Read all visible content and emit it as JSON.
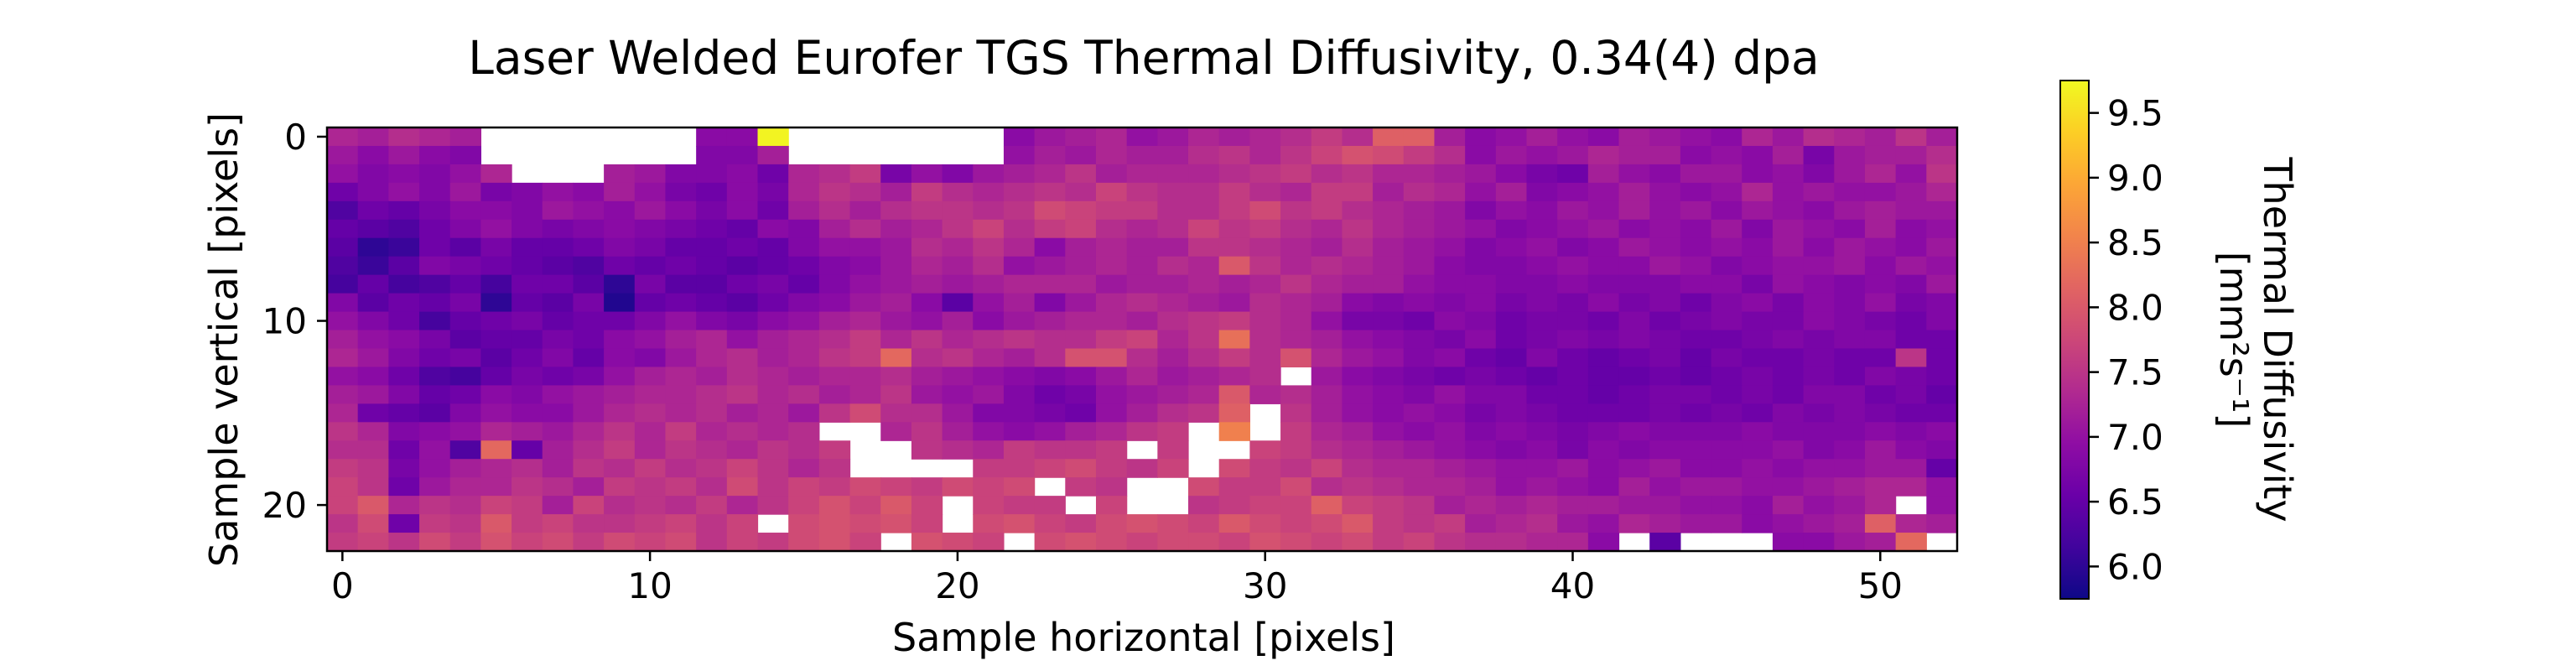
{
  "chart_data": {
    "type": "heatmap",
    "title": "Laser Welded Eurofer TGS Thermal Diffusivity, 0.34(4) dpa",
    "xlabel": "Sample horizontal [pixels]",
    "ylabel": "Sample vertical [pixels]",
    "colorbar_label_line1": "Thermal Diffusivity",
    "colorbar_label_line2": "[mm²s⁻¹]",
    "colormap": "plasma",
    "columns": 53,
    "rows": 23,
    "xlim": [
      -0.5,
      52.5
    ],
    "ylim": [
      22.5,
      -0.5
    ],
    "xticks": [
      0,
      10,
      20,
      30,
      40,
      50
    ],
    "xtick_labels": [
      "0",
      "10",
      "20",
      "30",
      "40",
      "50"
    ],
    "yticks": [
      0,
      10,
      20
    ],
    "ytick_labels": [
      "0",
      "10",
      "20"
    ],
    "color_range": [
      5.75,
      9.75
    ],
    "colorbar_ticks": [
      6.0,
      6.5,
      7.0,
      7.5,
      8.0,
      8.5,
      9.0,
      9.5
    ],
    "colorbar_tick_labels": [
      "6.0",
      "6.5",
      "7.0",
      "7.5",
      "8.0",
      "8.5",
      "9.0",
      "9.5"
    ],
    "values": [
      [
        7.3,
        7.2,
        7.4,
        7.3,
        7.2,
        null,
        null,
        null,
        null,
        null,
        null,
        null,
        6.9,
        6.9,
        9.7,
        null,
        null,
        null,
        null,
        null,
        null,
        null,
        6.9,
        7.1,
        7.2,
        7.3,
        7.0,
        7.1,
        7.3,
        7.2,
        7.3,
        7.4,
        7.6,
        7.4,
        8.1,
        8.1,
        7.2,
        6.9,
        7.0,
        7.2,
        7.0,
        6.9,
        7.2,
        7.1,
        7.0,
        6.9,
        7.3,
        7.1,
        7.4,
        7.3,
        7.2,
        7.5,
        7.2
      ],
      [
        7.1,
        6.9,
        7.1,
        6.9,
        6.8,
        null,
        null,
        null,
        null,
        null,
        null,
        null,
        6.8,
        6.8,
        7.2,
        null,
        null,
        null,
        null,
        null,
        null,
        null,
        7.0,
        7.2,
        7.1,
        7.3,
        7.2,
        7.2,
        7.4,
        7.5,
        7.3,
        7.5,
        7.7,
        7.9,
        7.8,
        7.6,
        7.4,
        6.9,
        7.1,
        7.0,
        7.1,
        7.3,
        7.2,
        7.2,
        6.9,
        7.0,
        6.9,
        7.2,
        6.7,
        7.1,
        7.2,
        7.2,
        7.4
      ],
      [
        7.0,
        6.8,
        6.9,
        6.8,
        7.0,
        7.3,
        null,
        null,
        null,
        7.2,
        7.1,
        6.8,
        6.8,
        6.9,
        6.6,
        7.3,
        7.4,
        7.6,
        6.7,
        7.0,
        6.8,
        7.1,
        7.2,
        7.3,
        7.5,
        7.2,
        7.3,
        7.3,
        7.3,
        7.4,
        7.5,
        7.6,
        7.4,
        7.5,
        7.3,
        7.3,
        7.2,
        7.1,
        6.9,
        6.7,
        6.6,
        7.2,
        7.0,
        6.9,
        7.1,
        7.1,
        6.9,
        7.0,
        6.8,
        7.1,
        7.3,
        7.0,
        7.5
      ],
      [
        6.6,
        6.8,
        7.0,
        6.8,
        7.1,
        6.7,
        6.8,
        7.0,
        6.9,
        7.2,
        7.0,
        6.7,
        6.6,
        6.9,
        6.7,
        7.3,
        7.5,
        7.4,
        7.2,
        7.6,
        7.4,
        7.3,
        7.4,
        7.5,
        7.4,
        7.7,
        7.5,
        7.4,
        7.4,
        7.6,
        7.4,
        7.3,
        7.6,
        7.6,
        7.2,
        7.4,
        7.3,
        7.0,
        7.2,
        6.8,
        6.9,
        7.0,
        7.2,
        7.0,
        6.9,
        7.0,
        7.3,
        7.0,
        7.1,
        7.0,
        7.0,
        7.1,
        7.3
      ],
      [
        6.3,
        6.6,
        6.5,
        6.7,
        6.9,
        6.9,
        6.8,
        7.1,
        7.0,
        6.9,
        7.1,
        6.9,
        6.7,
        6.9,
        6.6,
        7.2,
        7.4,
        7.2,
        7.4,
        7.5,
        7.5,
        7.4,
        7.5,
        7.8,
        7.7,
        7.6,
        7.6,
        7.4,
        7.4,
        7.6,
        7.8,
        7.5,
        7.6,
        7.4,
        7.3,
        7.2,
        7.1,
        6.8,
        7.0,
        6.9,
        7.1,
        7.0,
        7.2,
        7.0,
        7.1,
        6.9,
        7.1,
        7.0,
        6.9,
        7.1,
        7.2,
        7.1,
        7.1
      ],
      [
        6.5,
        6.4,
        6.3,
        6.6,
        6.8,
        7.0,
        6.8,
        6.7,
        6.8,
        6.9,
        6.8,
        6.7,
        6.6,
        6.5,
        6.9,
        6.8,
        7.2,
        7.4,
        7.2,
        7.3,
        7.5,
        7.7,
        7.4,
        7.6,
        7.7,
        7.4,
        7.3,
        7.4,
        7.7,
        7.5,
        7.6,
        7.4,
        7.3,
        7.5,
        7.3,
        7.2,
        7.1,
        7.0,
        6.8,
        6.9,
        7.0,
        7.1,
        6.9,
        7.0,
        6.9,
        7.1,
        6.8,
        7.1,
        7.0,
        6.9,
        7.2,
        6.9,
        7.0
      ],
      [
        6.4,
        6.0,
        6.1,
        6.6,
        6.4,
        6.7,
        6.5,
        6.5,
        6.6,
        6.8,
        6.7,
        6.5,
        6.5,
        6.6,
        6.5,
        6.8,
        7.0,
        7.0,
        7.1,
        7.4,
        7.3,
        7.5,
        7.3,
        6.9,
        7.2,
        7.3,
        7.2,
        7.2,
        7.5,
        7.5,
        7.4,
        7.3,
        7.2,
        7.4,
        7.2,
        7.1,
        7.0,
        6.8,
        6.9,
        7.0,
        6.8,
        6.9,
        7.1,
        7.0,
        6.9,
        7.0,
        6.9,
        7.1,
        6.9,
        7.1,
        7.0,
        6.9,
        7.1
      ],
      [
        6.3,
        6.1,
        6.4,
        6.8,
        6.7,
        6.6,
        6.5,
        6.4,
        6.3,
        6.6,
        6.5,
        6.6,
        6.5,
        6.4,
        6.5,
        6.6,
        6.8,
        6.9,
        7.1,
        7.3,
        7.2,
        7.4,
        7.0,
        7.1,
        7.2,
        7.3,
        7.2,
        7.4,
        7.3,
        8.0,
        7.5,
        7.3,
        7.4,
        7.3,
        7.2,
        7.1,
        6.9,
        6.8,
        6.8,
        6.9,
        7.0,
        6.9,
        6.9,
        7.1,
        7.0,
        6.8,
        6.9,
        7.0,
        7.0,
        7.1,
        6.9,
        7.1,
        7.0
      ],
      [
        6.2,
        6.5,
        6.2,
        6.3,
        6.5,
        6.2,
        6.6,
        6.6,
        6.4,
        6.0,
        6.7,
        6.4,
        6.4,
        6.6,
        6.7,
        6.5,
        6.8,
        7.0,
        7.1,
        7.2,
        7.1,
        7.2,
        7.3,
        7.3,
        7.3,
        7.1,
        7.2,
        7.2,
        7.3,
        7.2,
        7.3,
        7.5,
        7.3,
        7.2,
        7.2,
        7.0,
        6.9,
        6.9,
        6.8,
        6.8,
        6.9,
        6.8,
        6.8,
        6.8,
        6.9,
        6.9,
        6.7,
        7.0,
        6.9,
        6.8,
        6.9,
        6.8,
        7.1
      ],
      [
        6.8,
        6.4,
        6.6,
        6.5,
        6.7,
        6.0,
        6.5,
        6.4,
        6.7,
        5.9,
        6.5,
        6.6,
        6.5,
        6.4,
        6.6,
        6.8,
        6.9,
        7.1,
        7.2,
        6.9,
        6.4,
        7.0,
        7.2,
        6.8,
        7.1,
        7.3,
        7.4,
        7.3,
        7.2,
        7.1,
        7.4,
        7.3,
        7.2,
        6.9,
        6.8,
        6.9,
        6.8,
        6.9,
        6.7,
        6.8,
        6.7,
        6.9,
        6.7,
        6.8,
        6.6,
        6.8,
        6.9,
        6.7,
        6.9,
        6.8,
        7.0,
        6.7,
        6.8
      ],
      [
        7.0,
        6.8,
        6.6,
        6.2,
        6.5,
        6.6,
        6.7,
        6.5,
        6.6,
        6.6,
        6.8,
        7.0,
        6.8,
        6.7,
        6.9,
        7.0,
        7.2,
        7.3,
        7.1,
        7.0,
        7.2,
        6.9,
        7.1,
        7.2,
        7.3,
        7.3,
        7.2,
        7.4,
        7.5,
        7.6,
        7.4,
        7.3,
        7.0,
        6.7,
        6.7,
        6.6,
        6.9,
        6.8,
        6.6,
        6.7,
        6.7,
        6.6,
        6.8,
        6.6,
        6.7,
        6.8,
        6.7,
        6.7,
        6.9,
        6.8,
        6.7,
        6.6,
        6.8
      ],
      [
        7.2,
        7.0,
        6.9,
        6.7,
        6.4,
        6.5,
        6.5,
        6.7,
        6.6,
        6.9,
        7.0,
        7.2,
        7.3,
        7.0,
        7.2,
        7.3,
        7.4,
        7.6,
        7.3,
        7.5,
        7.3,
        7.4,
        7.5,
        7.4,
        7.4,
        7.6,
        7.7,
        7.3,
        7.5,
        8.3,
        7.4,
        7.3,
        7.2,
        7.0,
        6.9,
        6.8,
        6.7,
        6.9,
        6.6,
        6.7,
        6.8,
        6.7,
        6.8,
        6.7,
        6.6,
        6.6,
        6.7,
        6.8,
        6.7,
        6.8,
        6.8,
        6.6,
        6.6
      ],
      [
        7.3,
        7.1,
        6.8,
        6.6,
        6.7,
        6.4,
        6.6,
        6.8,
        6.5,
        6.9,
        6.8,
        7.1,
        7.3,
        7.4,
        7.2,
        7.3,
        7.5,
        7.6,
        8.2,
        7.4,
        7.5,
        7.3,
        7.2,
        7.4,
        7.9,
        7.9,
        7.4,
        7.2,
        7.4,
        7.6,
        7.4,
        7.9,
        7.3,
        7.1,
        7.0,
        6.8,
        6.9,
        6.6,
        6.5,
        6.8,
        6.6,
        6.5,
        6.6,
        6.7,
        6.5,
        6.7,
        6.6,
        6.6,
        6.7,
        6.6,
        6.6,
        7.5,
        6.6
      ],
      [
        7.0,
        6.9,
        6.6,
        6.3,
        6.2,
        6.5,
        6.7,
        6.6,
        6.7,
        7.0,
        7.2,
        7.3,
        7.2,
        7.4,
        7.3,
        7.2,
        7.3,
        7.3,
        7.4,
        7.2,
        7.1,
        7.0,
        6.9,
        6.8,
        6.9,
        7.1,
        7.3,
        7.1,
        7.2,
        7.3,
        7.4,
        null,
        7.1,
        6.9,
        6.8,
        6.7,
        6.6,
        6.7,
        6.6,
        6.5,
        6.6,
        6.5,
        6.5,
        6.6,
        6.5,
        6.6,
        6.7,
        6.6,
        6.7,
        6.6,
        6.8,
        6.7,
        6.6
      ],
      [
        7.2,
        7.1,
        6.8,
        6.5,
        6.6,
        6.9,
        6.8,
        7.0,
        7.1,
        7.2,
        7.3,
        7.3,
        7.4,
        7.5,
        7.3,
        7.4,
        7.2,
        7.3,
        7.5,
        7.1,
        7.0,
        7.1,
        6.8,
        6.6,
        6.7,
        7.0,
        7.1,
        7.2,
        7.3,
        8.0,
        7.3,
        7.4,
        7.2,
        7.0,
        6.9,
        6.8,
        7.0,
        6.8,
        6.8,
        6.6,
        6.6,
        6.5,
        6.6,
        6.7,
        6.7,
        6.6,
        6.7,
        6.6,
        6.8,
        6.8,
        6.6,
        6.7,
        6.5
      ],
      [
        7.3,
        6.6,
        6.5,
        6.4,
        6.8,
        7.0,
        6.9,
        6.9,
        7.1,
        7.3,
        7.4,
        7.3,
        7.4,
        7.2,
        7.3,
        7.1,
        7.5,
        7.8,
        7.4,
        7.4,
        7.1,
        6.8,
        6.8,
        6.7,
        6.6,
        7.0,
        7.2,
        7.4,
        7.5,
        8.1,
        null,
        7.5,
        7.2,
        7.0,
        6.9,
        7.0,
        6.9,
        6.7,
        6.8,
        6.7,
        6.6,
        6.6,
        6.6,
        6.7,
        6.6,
        6.7,
        6.6,
        6.8,
        6.7,
        6.8,
        6.7,
        6.6,
        6.6
      ],
      [
        7.5,
        7.3,
        6.8,
        6.9,
        7.0,
        7.3,
        7.2,
        7.1,
        7.3,
        7.5,
        7.3,
        7.6,
        7.3,
        7.4,
        7.3,
        7.4,
        null,
        null,
        7.3,
        7.5,
        7.2,
        7.0,
        6.9,
        7.0,
        7.2,
        7.3,
        7.5,
        7.6,
        null,
        8.5,
        null,
        7.6,
        7.3,
        7.2,
        7.0,
        6.9,
        7.0,
        6.8,
        6.9,
        6.8,
        6.7,
        6.8,
        6.9,
        6.8,
        6.8,
        6.8,
        6.9,
        6.8,
        6.8,
        6.8,
        6.9,
        6.8,
        6.9
      ],
      [
        7.4,
        7.4,
        6.6,
        7.0,
        6.3,
        8.2,
        6.5,
        7.2,
        7.4,
        7.6,
        7.3,
        7.5,
        7.4,
        7.3,
        7.5,
        7.4,
        7.6,
        null,
        null,
        7.5,
        7.4,
        7.3,
        7.6,
        7.5,
        7.5,
        7.6,
        null,
        7.6,
        null,
        null,
        7.7,
        7.6,
        7.4,
        7.3,
        7.2,
        7.1,
        7.0,
        6.9,
        6.8,
        6.9,
        6.7,
        6.9,
        6.8,
        6.9,
        6.9,
        6.9,
        6.9,
        7.0,
        6.8,
        6.9,
        7.1,
        6.9,
        6.8
      ],
      [
        7.6,
        7.5,
        6.7,
        7.0,
        7.2,
        7.3,
        7.4,
        7.2,
        7.5,
        7.4,
        7.6,
        7.4,
        7.5,
        7.7,
        7.5,
        7.3,
        7.5,
        null,
        null,
        null,
        null,
        7.6,
        7.6,
        7.7,
        7.8,
        7.6,
        7.5,
        7.7,
        null,
        7.8,
        7.6,
        7.5,
        7.7,
        7.4,
        7.3,
        7.3,
        7.2,
        7.1,
        7.0,
        7.0,
        7.1,
        6.9,
        7.0,
        7.1,
        6.9,
        6.9,
        7.0,
        6.9,
        7.0,
        7.0,
        7.1,
        7.1,
        6.5
      ],
      [
        7.7,
        7.5,
        6.6,
        7.1,
        7.3,
        7.3,
        7.5,
        7.4,
        7.2,
        7.6,
        7.5,
        7.6,
        7.4,
        7.8,
        7.5,
        7.7,
        7.6,
        7.8,
        7.7,
        7.6,
        7.8,
        7.7,
        7.8,
        null,
        7.6,
        7.5,
        null,
        null,
        7.8,
        7.6,
        7.6,
        7.8,
        7.4,
        7.5,
        7.4,
        7.3,
        7.3,
        7.2,
        7.0,
        7.1,
        7.0,
        6.9,
        7.2,
        7.0,
        7.1,
        7.1,
        7.0,
        7.0,
        7.1,
        7.2,
        7.3,
        7.3,
        7.0
      ],
      [
        7.7,
        8.0,
        7.3,
        7.5,
        7.4,
        7.7,
        7.6,
        7.2,
        7.7,
        7.4,
        7.5,
        7.4,
        7.6,
        7.3,
        7.5,
        7.7,
        7.9,
        7.7,
        8.0,
        7.7,
        null,
        7.7,
        7.6,
        7.6,
        null,
        7.7,
        null,
        null,
        7.5,
        7.6,
        7.7,
        7.7,
        8.1,
        7.7,
        7.6,
        7.5,
        7.2,
        7.3,
        7.2,
        7.3,
        7.2,
        7.2,
        7.1,
        7.1,
        7.0,
        7.0,
        6.9,
        7.2,
        7.0,
        7.1,
        7.3,
        null,
        7.0
      ],
      [
        7.5,
        7.8,
        6.6,
        7.6,
        7.5,
        8.0,
        7.6,
        7.7,
        7.5,
        7.5,
        7.6,
        7.7,
        7.5,
        7.7,
        null,
        7.8,
        7.9,
        7.8,
        7.9,
        7.7,
        null,
        7.8,
        7.9,
        7.7,
        7.6,
        7.8,
        7.9,
        7.8,
        7.7,
        8.0,
        7.8,
        7.7,
        7.8,
        8.0,
        7.6,
        7.5,
        7.6,
        7.2,
        7.3,
        7.4,
        7.1,
        7.0,
        7.3,
        7.2,
        7.1,
        7.1,
        6.9,
        7.0,
        7.1,
        7.2,
        8.1,
        7.3,
        7.2
      ],
      [
        7.6,
        7.7,
        7.5,
        7.8,
        7.6,
        7.9,
        7.7,
        7.8,
        7.6,
        7.8,
        7.7,
        7.8,
        7.5,
        7.7,
        7.6,
        7.8,
        7.9,
        7.7,
        null,
        7.9,
        7.8,
        7.7,
        null,
        7.8,
        7.9,
        7.8,
        7.7,
        7.8,
        7.8,
        7.7,
        7.9,
        7.8,
        7.7,
        7.8,
        7.6,
        7.7,
        7.5,
        7.4,
        7.4,
        7.3,
        7.3,
        6.9,
        null,
        6.4,
        null,
        null,
        null,
        6.9,
        6.9,
        7.1,
        7.2,
        8.2,
        null
      ]
    ]
  }
}
